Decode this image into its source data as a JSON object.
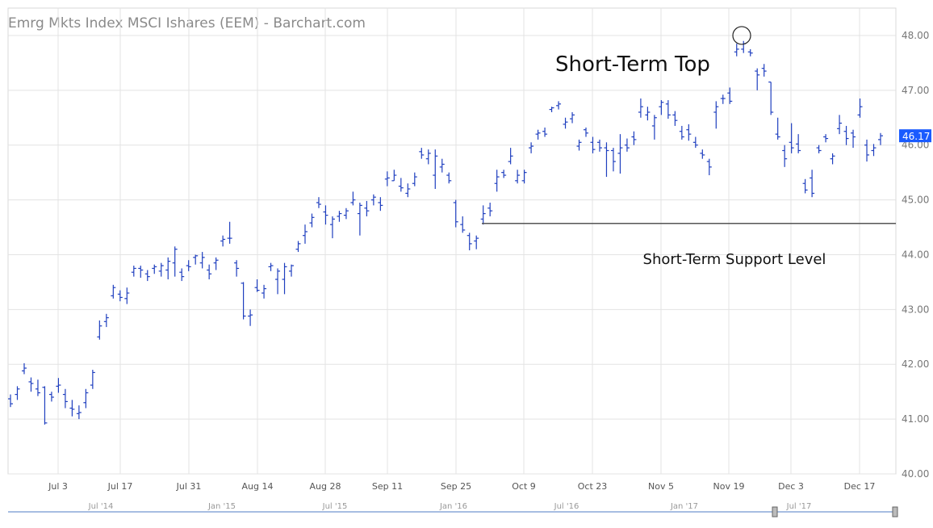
{
  "chart_data": {
    "type": "ohlc",
    "title": "Emrg Mkts Index MSCI Ishares (EEM) - Barchart.com",
    "ylim": [
      40,
      48.5
    ],
    "yticks": [
      "40.00",
      "41.00",
      "42.00",
      "43.00",
      "44.00",
      "45.00",
      "46.00",
      "47.00",
      "48.00"
    ],
    "last_price": "46.17",
    "x_tick_labels": [
      "Jul 3",
      "Jul 17",
      "Jul 31",
      "Aug 14",
      "Aug 28",
      "Sep 11",
      "Sep 25",
      "Oct 9",
      "Oct 23",
      "Nov 5",
      "Nov 19",
      "Dec 3",
      "Dec 17"
    ],
    "navigator_labels": [
      "Jul '14",
      "Jan '15",
      "Jul '15",
      "Jan '16",
      "Jul '16",
      "Jan '17",
      "Jul '17"
    ],
    "annotations": {
      "top_label": "Short-Term Top",
      "support_label": "Short-Term Support Level",
      "support_level": 44.57,
      "top_price": 48.0
    },
    "grid": true,
    "bar_color": "#1f3fbf",
    "bars": [
      [
        41.37,
        41.45,
        41.22,
        41.28
      ],
      [
        41.45,
        41.6,
        41.35,
        41.55
      ],
      [
        41.88,
        42.02,
        41.82,
        41.93
      ],
      [
        41.68,
        41.76,
        41.5,
        41.65
      ],
      [
        41.55,
        41.72,
        41.42,
        41.48
      ],
      [
        41.58,
        41.6,
        40.9,
        40.93
      ],
      [
        41.45,
        41.5,
        41.32,
        41.4
      ],
      [
        41.6,
        41.75,
        41.48,
        41.62
      ],
      [
        41.45,
        41.55,
        41.2,
        41.32
      ],
      [
        41.2,
        41.35,
        41.05,
        41.18
      ],
      [
        41.1,
        41.25,
        41.0,
        41.12
      ],
      [
        41.3,
        41.55,
        41.2,
        41.48
      ],
      [
        41.62,
        41.9,
        41.55,
        41.85
      ],
      [
        42.5,
        42.8,
        42.45,
        42.7
      ],
      [
        42.78,
        42.92,
        42.68,
        42.85
      ],
      [
        43.25,
        43.45,
        43.2,
        43.4
      ],
      [
        43.28,
        43.35,
        43.15,
        43.22
      ],
      [
        43.2,
        43.4,
        43.1,
        43.3
      ],
      [
        43.68,
        43.8,
        43.6,
        43.75
      ],
      [
        43.75,
        43.8,
        43.58,
        43.72
      ],
      [
        43.65,
        43.72,
        43.52,
        43.6
      ],
      [
        43.75,
        43.82,
        43.65,
        43.78
      ],
      [
        43.7,
        43.85,
        43.6,
        43.8
      ],
      [
        43.72,
        43.95,
        43.55,
        43.88
      ],
      [
        43.85,
        44.15,
        43.6,
        44.1
      ],
      [
        43.68,
        43.75,
        43.52,
        43.6
      ],
      [
        43.8,
        43.9,
        43.7,
        43.78
      ],
      [
        43.95,
        44.0,
        43.82,
        43.98
      ],
      [
        43.85,
        44.05,
        43.75,
        43.95
      ],
      [
        43.72,
        43.82,
        43.55,
        43.65
      ],
      [
        43.85,
        43.95,
        43.72,
        43.9
      ],
      [
        44.25,
        44.35,
        44.15,
        44.28
      ],
      [
        44.3,
        44.6,
        44.2,
        44.3
      ],
      [
        43.85,
        43.9,
        43.6,
        43.75
      ],
      [
        43.48,
        43.5,
        42.82,
        42.88
      ],
      [
        42.88,
        43.0,
        42.7,
        42.9
      ],
      [
        43.4,
        43.55,
        43.32,
        43.35
      ],
      [
        43.3,
        43.45,
        43.2,
        43.38
      ],
      [
        43.78,
        43.85,
        43.7,
        43.8
      ],
      [
        43.55,
        43.75,
        43.28,
        43.7
      ],
      [
        43.55,
        43.85,
        43.28,
        43.78
      ],
      [
        43.7,
        43.82,
        43.6,
        43.8
      ],
      [
        44.1,
        44.25,
        44.05,
        44.2
      ],
      [
        44.35,
        44.55,
        44.2,
        44.42
      ],
      [
        44.58,
        44.75,
        44.5,
        44.68
      ],
      [
        44.95,
        45.05,
        44.85,
        44.92
      ],
      [
        44.78,
        44.9,
        44.55,
        44.72
      ],
      [
        44.55,
        44.7,
        44.3,
        44.65
      ],
      [
        44.7,
        44.8,
        44.6,
        44.75
      ],
      [
        44.72,
        44.85,
        44.65,
        44.8
      ],
      [
        44.95,
        45.15,
        44.9,
        45.0
      ],
      [
        44.75,
        44.95,
        44.35,
        44.9
      ],
      [
        44.85,
        44.98,
        44.7,
        44.8
      ],
      [
        45.0,
        45.1,
        44.9,
        45.05
      ],
      [
        44.95,
        45.05,
        44.8,
        44.9
      ],
      [
        45.38,
        45.52,
        45.25,
        45.4
      ],
      [
        45.35,
        45.55,
        45.35,
        45.45
      ],
      [
        45.25,
        45.4,
        45.15,
        45.22
      ],
      [
        45.12,
        45.3,
        45.05,
        45.2
      ],
      [
        45.3,
        45.5,
        45.25,
        45.42
      ],
      [
        45.88,
        45.95,
        45.75,
        45.82
      ],
      [
        45.75,
        45.92,
        45.65,
        45.85
      ],
      [
        45.45,
        45.92,
        45.2,
        45.8
      ],
      [
        45.6,
        45.75,
        45.5,
        45.65
      ],
      [
        45.45,
        45.5,
        45.3,
        45.35
      ],
      [
        44.95,
        45.0,
        44.5,
        44.6
      ],
      [
        44.55,
        44.7,
        44.4,
        44.45
      ],
      [
        44.35,
        44.4,
        44.08,
        44.2
      ],
      [
        44.25,
        44.35,
        44.1,
        44.3
      ],
      [
        44.65,
        44.9,
        44.55,
        44.75
      ],
      [
        44.85,
        44.95,
        44.7,
        44.8
      ],
      [
        45.3,
        45.55,
        45.15,
        45.42
      ],
      [
        45.5,
        45.55,
        45.4,
        45.45
      ],
      [
        45.7,
        45.95,
        45.65,
        45.8
      ],
      [
        45.35,
        45.55,
        45.3,
        45.45
      ],
      [
        45.35,
        45.55,
        45.3,
        45.5
      ],
      [
        45.95,
        46.05,
        45.85,
        45.98
      ],
      [
        46.2,
        46.28,
        46.1,
        46.22
      ],
      [
        46.25,
        46.32,
        46.15,
        46.2
      ],
      [
        46.65,
        46.7,
        46.6,
        46.68
      ],
      [
        46.72,
        46.8,
        46.65,
        46.75
      ],
      [
        46.38,
        46.5,
        46.3,
        46.42
      ],
      [
        46.48,
        46.6,
        46.4,
        46.55
      ],
      [
        45.98,
        46.1,
        45.9,
        46.05
      ],
      [
        46.28,
        46.32,
        46.15,
        46.22
      ],
      [
        46.05,
        46.15,
        45.85,
        45.92
      ],
      [
        46.05,
        46.1,
        45.88,
        45.95
      ],
      [
        45.95,
        46.05,
        45.42,
        45.9
      ],
      [
        45.9,
        45.95,
        45.52,
        45.7
      ],
      [
        45.85,
        46.2,
        45.48,
        45.95
      ],
      [
        46.0,
        46.12,
        45.88,
        45.95
      ],
      [
        46.15,
        46.25,
        46.0,
        46.1
      ],
      [
        46.6,
        46.85,
        46.5,
        46.7
      ],
      [
        46.55,
        46.7,
        46.45,
        46.6
      ],
      [
        46.35,
        46.55,
        46.1,
        46.5
      ],
      [
        46.7,
        46.82,
        46.55,
        46.78
      ],
      [
        46.75,
        46.82,
        46.48,
        46.55
      ],
      [
        46.55,
        46.62,
        46.35,
        46.45
      ],
      [
        46.25,
        46.35,
        46.1,
        46.15
      ],
      [
        46.28,
        46.38,
        46.08,
        46.2
      ],
      [
        46.05,
        46.15,
        45.95,
        46.0
      ],
      [
        45.85,
        45.92,
        45.75,
        45.82
      ],
      [
        45.7,
        45.75,
        45.45,
        45.6
      ],
      [
        46.6,
        46.8,
        46.3,
        46.7
      ],
      [
        46.85,
        46.92,
        46.75,
        46.85
      ],
      [
        46.95,
        47.05,
        46.75,
        46.8
      ],
      [
        47.7,
        47.85,
        47.62,
        47.75
      ],
      [
        47.75,
        47.9,
        47.68,
        47.85
      ],
      [
        47.7,
        47.75,
        47.62,
        47.68
      ],
      [
        47.35,
        47.4,
        47.0,
        47.28
      ],
      [
        47.4,
        47.48,
        47.25,
        47.35
      ],
      [
        47.15,
        47.15,
        46.55,
        46.6
      ],
      [
        46.2,
        46.5,
        46.1,
        46.15
      ],
      [
        45.9,
        46.0,
        45.6,
        45.75
      ],
      [
        46.05,
        46.4,
        45.85,
        45.95
      ],
      [
        46.02,
        46.2,
        45.85,
        45.9
      ],
      [
        45.3,
        45.38,
        45.12,
        45.18
      ],
      [
        45.4,
        45.55,
        45.05,
        45.12
      ],
      [
        45.95,
        46.0,
        45.85,
        45.9
      ],
      [
        46.15,
        46.2,
        46.05,
        46.12
      ],
      [
        45.75,
        45.85,
        45.65,
        45.8
      ],
      [
        46.3,
        46.55,
        46.2,
        46.4
      ],
      [
        46.25,
        46.35,
        46.0,
        46.12
      ],
      [
        46.22,
        46.28,
        45.95,
        46.15
      ],
      [
        46.55,
        46.85,
        46.5,
        46.7
      ],
      [
        46.0,
        46.1,
        45.7,
        45.82
      ],
      [
        45.9,
        46.02,
        45.8,
        45.95
      ],
      [
        46.1,
        46.22,
        46.0,
        46.17
      ]
    ]
  }
}
